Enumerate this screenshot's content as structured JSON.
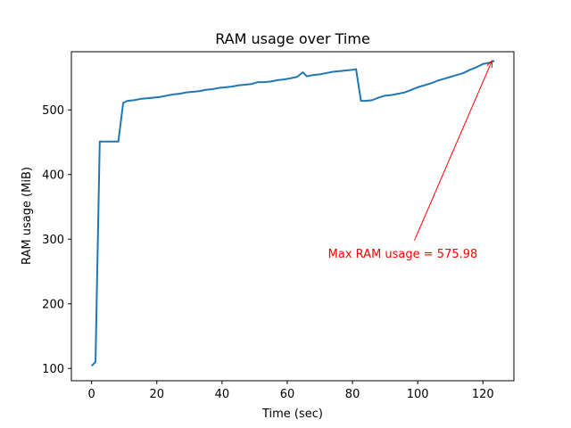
{
  "chart_data": {
    "type": "line",
    "title": "RAM usage over Time",
    "xlabel": "Time (sec)",
    "ylabel": "RAM usage (MiB)",
    "xlim": [
      -6.2,
      129.5
    ],
    "ylim": [
      81,
      590
    ],
    "xticks": [
      0,
      20,
      40,
      60,
      80,
      100,
      120
    ],
    "yticks": [
      100,
      200,
      300,
      400,
      500
    ],
    "grid": false,
    "legend": "none",
    "line_color": "#1f77b4",
    "series": [
      {
        "x": [
          0,
          1.2,
          2.5,
          4,
          6,
          8.2,
          9.7,
          11,
          13,
          15,
          17,
          19,
          21,
          23,
          25,
          27,
          29,
          31,
          33,
          35,
          37,
          39,
          41,
          43,
          45,
          47,
          49,
          51,
          53,
          55,
          57,
          59,
          61,
          63,
          64.8,
          66,
          68,
          70,
          72,
          74,
          76,
          78,
          80,
          81.1,
          82.6,
          84,
          86,
          88,
          90,
          92,
          94,
          96,
          98,
          100,
          102,
          104,
          106,
          108,
          110,
          112,
          114,
          116,
          118,
          120,
          122,
          123.5
        ],
        "values": [
          104,
          110,
          451,
          451,
          451,
          451,
          511,
          514,
          515,
          517,
          518,
          519,
          520,
          522,
          524,
          525,
          527,
          528,
          529,
          531,
          532,
          534,
          535,
          536,
          538,
          539,
          540,
          543,
          543,
          544,
          546,
          547,
          549,
          551,
          558,
          552,
          554,
          555,
          557,
          559,
          560,
          561,
          562,
          563,
          514,
          514,
          515,
          519,
          522,
          523,
          525,
          527,
          531,
          535,
          538,
          541,
          545,
          548,
          551,
          554,
          557,
          562,
          566,
          571,
          573,
          576
        ]
      }
    ],
    "annotation": {
      "text": "Max RAM usage = 575.98",
      "text_x": 72.5,
      "text_y": 278,
      "arrow_from_x": 99,
      "arrow_from_y": 298,
      "arrow_to_x": 122.8,
      "arrow_to_y": 575.98,
      "color": "#ff0000"
    }
  }
}
